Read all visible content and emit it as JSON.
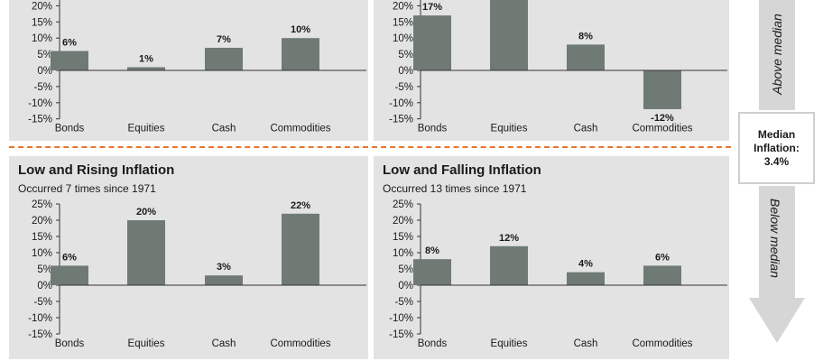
{
  "median": {
    "line1": "Median",
    "line2": "Inflation:",
    "value": "3.4%"
  },
  "arrows": {
    "above_label": "Above median",
    "below_label": "Below median",
    "color": "#d6d6d6"
  },
  "colors": {
    "bar": "#707a75",
    "panel": "#e3e3e3",
    "divider": "#e8752a"
  },
  "chart_data": [
    {
      "type": "bar",
      "title": "",
      "subtitle": "",
      "categories": [
        "Bonds",
        "Equities",
        "Cash",
        "Commodities"
      ],
      "values": [
        6,
        1,
        7,
        10
      ],
      "data_labels": [
        "6%",
        "1%",
        "7%",
        "10%"
      ],
      "yticks": [
        "20%",
        "15%",
        "10%",
        "5%",
        "0%",
        "-5%",
        "-10%",
        "-15%"
      ],
      "ylim": [
        -15,
        25
      ],
      "xlabel": "",
      "ylabel": ""
    },
    {
      "type": "bar",
      "title": "",
      "subtitle": "",
      "categories": [
        "Bonds",
        "Equities",
        "Cash",
        "Commodities"
      ],
      "values": [
        17,
        22,
        8,
        -12
      ],
      "data_labels": [
        "17%",
        "",
        "8%",
        "-12%"
      ],
      "yticks": [
        "20%",
        "15%",
        "10%",
        "5%",
        "0%",
        "-5%",
        "-10%",
        "-15%"
      ],
      "ylim": [
        -15,
        25
      ],
      "xlabel": "",
      "ylabel": ""
    },
    {
      "type": "bar",
      "title": "Low and Rising Inflation",
      "subtitle": "Occurred 7 times since 1971",
      "categories": [
        "Bonds",
        "Equities",
        "Cash",
        "Commodities"
      ],
      "values": [
        6,
        20,
        3,
        22
      ],
      "data_labels": [
        "6%",
        "20%",
        "3%",
        "22%"
      ],
      "yticks": [
        "25%",
        "20%",
        "15%",
        "10%",
        "5%",
        "0%",
        "-5%",
        "-10%",
        "-15%"
      ],
      "ylim": [
        -15,
        25
      ],
      "xlabel": "",
      "ylabel": ""
    },
    {
      "type": "bar",
      "title": "Low and Falling Inflation",
      "subtitle": "Occurred 13 times since 1971",
      "categories": [
        "Bonds",
        "Equities",
        "Cash",
        "Commodities"
      ],
      "values": [
        8,
        12,
        4,
        6
      ],
      "data_labels": [
        "8%",
        "12%",
        "4%",
        "6%"
      ],
      "yticks": [
        "25%",
        "20%",
        "15%",
        "10%",
        "5%",
        "0%",
        "-5%",
        "-10%",
        "-15%"
      ],
      "ylim": [
        -15,
        25
      ],
      "xlabel": "",
      "ylabel": ""
    }
  ]
}
